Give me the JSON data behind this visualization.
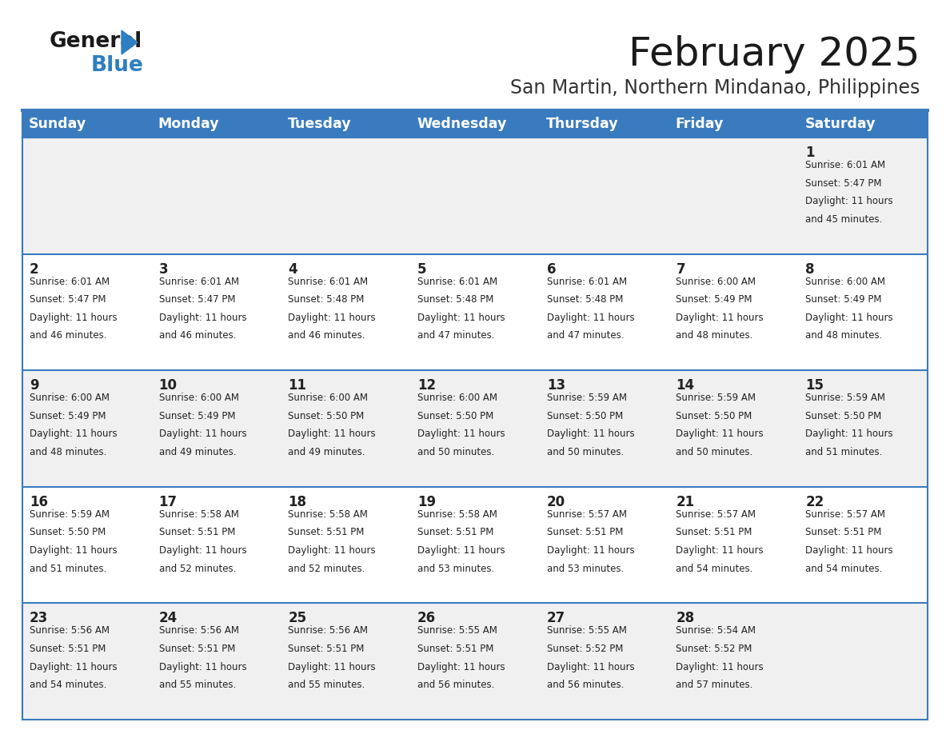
{
  "title": "February 2025",
  "subtitle": "San Martin, Northern Mindanao, Philippines",
  "days_of_week": [
    "Sunday",
    "Monday",
    "Tuesday",
    "Wednesday",
    "Thursday",
    "Friday",
    "Saturday"
  ],
  "header_bg": "#3a7bbf",
  "header_text": "#ffffff",
  "row_bg_odd": "#f0f0f0",
  "row_bg_even": "#ffffff",
  "text_color": "#222222",
  "border_color": "#3a7bbf",
  "title_color": "#1a1a1a",
  "subtitle_color": "#333333",
  "calendar_data": [
    {
      "day": 1,
      "col": 6,
      "row": 0,
      "sunrise": "6:01 AM",
      "sunset": "5:47 PM",
      "daylight": "11 hours and 45 minutes."
    },
    {
      "day": 2,
      "col": 0,
      "row": 1,
      "sunrise": "6:01 AM",
      "sunset": "5:47 PM",
      "daylight": "11 hours and 46 minutes."
    },
    {
      "day": 3,
      "col": 1,
      "row": 1,
      "sunrise": "6:01 AM",
      "sunset": "5:47 PM",
      "daylight": "11 hours and 46 minutes."
    },
    {
      "day": 4,
      "col": 2,
      "row": 1,
      "sunrise": "6:01 AM",
      "sunset": "5:48 PM",
      "daylight": "11 hours and 46 minutes."
    },
    {
      "day": 5,
      "col": 3,
      "row": 1,
      "sunrise": "6:01 AM",
      "sunset": "5:48 PM",
      "daylight": "11 hours and 47 minutes."
    },
    {
      "day": 6,
      "col": 4,
      "row": 1,
      "sunrise": "6:01 AM",
      "sunset": "5:48 PM",
      "daylight": "11 hours and 47 minutes."
    },
    {
      "day": 7,
      "col": 5,
      "row": 1,
      "sunrise": "6:00 AM",
      "sunset": "5:49 PM",
      "daylight": "11 hours and 48 minutes."
    },
    {
      "day": 8,
      "col": 6,
      "row": 1,
      "sunrise": "6:00 AM",
      "sunset": "5:49 PM",
      "daylight": "11 hours and 48 minutes."
    },
    {
      "day": 9,
      "col": 0,
      "row": 2,
      "sunrise": "6:00 AM",
      "sunset": "5:49 PM",
      "daylight": "11 hours and 48 minutes."
    },
    {
      "day": 10,
      "col": 1,
      "row": 2,
      "sunrise": "6:00 AM",
      "sunset": "5:49 PM",
      "daylight": "11 hours and 49 minutes."
    },
    {
      "day": 11,
      "col": 2,
      "row": 2,
      "sunrise": "6:00 AM",
      "sunset": "5:50 PM",
      "daylight": "11 hours and 49 minutes."
    },
    {
      "day": 12,
      "col": 3,
      "row": 2,
      "sunrise": "6:00 AM",
      "sunset": "5:50 PM",
      "daylight": "11 hours and 50 minutes."
    },
    {
      "day": 13,
      "col": 4,
      "row": 2,
      "sunrise": "5:59 AM",
      "sunset": "5:50 PM",
      "daylight": "11 hours and 50 minutes."
    },
    {
      "day": 14,
      "col": 5,
      "row": 2,
      "sunrise": "5:59 AM",
      "sunset": "5:50 PM",
      "daylight": "11 hours and 50 minutes."
    },
    {
      "day": 15,
      "col": 6,
      "row": 2,
      "sunrise": "5:59 AM",
      "sunset": "5:50 PM",
      "daylight": "11 hours and 51 minutes."
    },
    {
      "day": 16,
      "col": 0,
      "row": 3,
      "sunrise": "5:59 AM",
      "sunset": "5:50 PM",
      "daylight": "11 hours and 51 minutes."
    },
    {
      "day": 17,
      "col": 1,
      "row": 3,
      "sunrise": "5:58 AM",
      "sunset": "5:51 PM",
      "daylight": "11 hours and 52 minutes."
    },
    {
      "day": 18,
      "col": 2,
      "row": 3,
      "sunrise": "5:58 AM",
      "sunset": "5:51 PM",
      "daylight": "11 hours and 52 minutes."
    },
    {
      "day": 19,
      "col": 3,
      "row": 3,
      "sunrise": "5:58 AM",
      "sunset": "5:51 PM",
      "daylight": "11 hours and 53 minutes."
    },
    {
      "day": 20,
      "col": 4,
      "row": 3,
      "sunrise": "5:57 AM",
      "sunset": "5:51 PM",
      "daylight": "11 hours and 53 minutes."
    },
    {
      "day": 21,
      "col": 5,
      "row": 3,
      "sunrise": "5:57 AM",
      "sunset": "5:51 PM",
      "daylight": "11 hours and 54 minutes."
    },
    {
      "day": 22,
      "col": 6,
      "row": 3,
      "sunrise": "5:57 AM",
      "sunset": "5:51 PM",
      "daylight": "11 hours and 54 minutes."
    },
    {
      "day": 23,
      "col": 0,
      "row": 4,
      "sunrise": "5:56 AM",
      "sunset": "5:51 PM",
      "daylight": "11 hours and 54 minutes."
    },
    {
      "day": 24,
      "col": 1,
      "row": 4,
      "sunrise": "5:56 AM",
      "sunset": "5:51 PM",
      "daylight": "11 hours and 55 minutes."
    },
    {
      "day": 25,
      "col": 2,
      "row": 4,
      "sunrise": "5:56 AM",
      "sunset": "5:51 PM",
      "daylight": "11 hours and 55 minutes."
    },
    {
      "day": 26,
      "col": 3,
      "row": 4,
      "sunrise": "5:55 AM",
      "sunset": "5:51 PM",
      "daylight": "11 hours and 56 minutes."
    },
    {
      "day": 27,
      "col": 4,
      "row": 4,
      "sunrise": "5:55 AM",
      "sunset": "5:52 PM",
      "daylight": "11 hours and 56 minutes."
    },
    {
      "day": 28,
      "col": 5,
      "row": 4,
      "sunrise": "5:54 AM",
      "sunset": "5:52 PM",
      "daylight": "11 hours and 57 minutes."
    }
  ],
  "num_rows": 5,
  "logo_color_general": "#1a1a1a",
  "logo_color_blue": "#2e7fc1",
  "logo_triangle_color": "#2e7fc1"
}
